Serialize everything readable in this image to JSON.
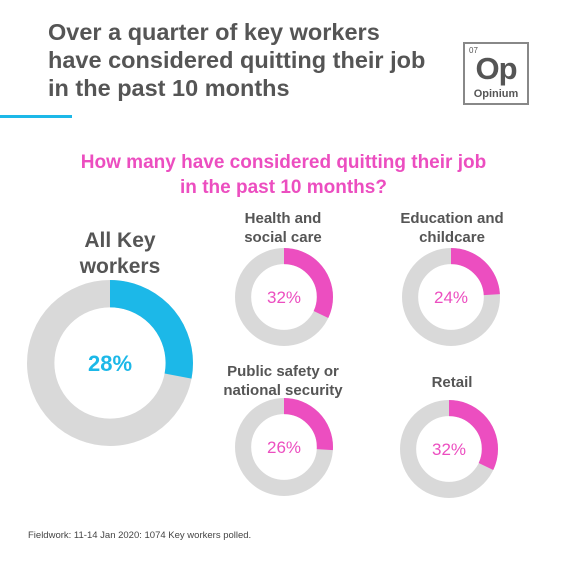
{
  "header": {
    "title_lines": [
      "Over a quarter of key workers",
      "have considered quitting their job",
      "in the past 10 months"
    ],
    "logo": {
      "number": "07",
      "mark": "Op",
      "name": "Opinium"
    }
  },
  "chart_data": {
    "type": "pie",
    "title_lines": [
      "How many have considered quitting their job",
      "in the past 10 months?"
    ],
    "unit": "%",
    "colors": {
      "primary": "#1cb8e8",
      "segment": "#ec4ec0",
      "remainder": "#d9d9d9",
      "label_primary": "#1cb8e8",
      "label_segment": "#ec4ec0"
    },
    "main": {
      "label_lines": [
        "All Key",
        "workers"
      ],
      "value": 28,
      "display": "28%"
    },
    "segments": [
      {
        "label_lines": [
          "Health and",
          "social care"
        ],
        "value": 32,
        "display": "32%"
      },
      {
        "label_lines": [
          "Education and",
          "childcare"
        ],
        "value": 24,
        "display": "24%"
      },
      {
        "label_lines": [
          "Public safety or",
          "national security"
        ],
        "value": 26,
        "display": "26%"
      },
      {
        "label_lines": [
          "Retail"
        ],
        "value": 32,
        "display": "32%"
      }
    ]
  },
  "footnote": "Fieldwork: 11-14 Jan 2020: 1074 Key workers polled."
}
